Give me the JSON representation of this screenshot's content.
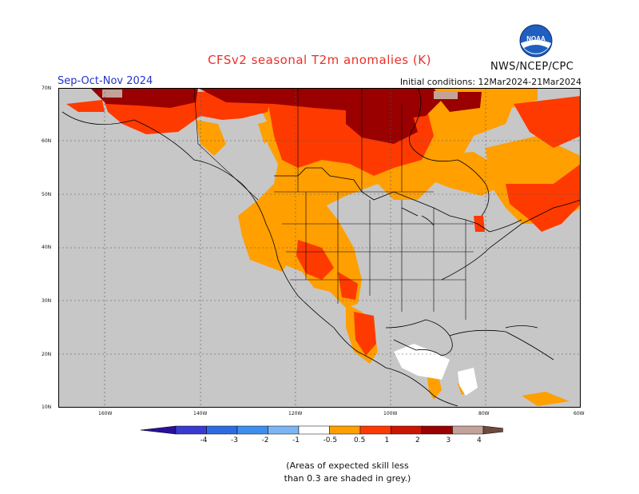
{
  "title": "CFSv2 seasonal T2m anomalies (K)",
  "agency": "NWS/NCEP/CPC",
  "logo_text": "NOAA",
  "season": "Sep-Oct-Nov 2024",
  "initial_conditions": "Initial conditions: 12Mar2024-21Mar2024",
  "lat_labels": [
    "70N",
    "60N",
    "50N",
    "40N",
    "30N",
    "20N",
    "10N"
  ],
  "lon_labels": [
    "160W",
    "140W",
    "120W",
    "100W",
    "80W",
    "60W"
  ],
  "legend": {
    "labels": [
      "-4",
      "-3",
      "-2",
      "-1",
      "-0.5",
      "0.5",
      "1",
      "2",
      "3",
      "4"
    ],
    "colors": [
      "#2a0f9a",
      "#3a3ad0",
      "#2d6be0",
      "#3d8fee",
      "#7bb6f2",
      "#ffffff",
      "#ff9f00",
      "#ff3a00",
      "#cc1500",
      "#9a0000",
      "#c3a399",
      "#6e4a3f"
    ]
  },
  "note": [
    "(Areas of expected skill less",
    "than 0.3 are shaded in grey.)"
  ],
  "colors": {
    "grey_skill": "#c7c7c7",
    "anom_0_5_1": "#ff9f00",
    "anom_1_2": "#ff3a00",
    "anom_2_3": "#9a0000",
    "anom_3_4": "#c3a399"
  }
}
